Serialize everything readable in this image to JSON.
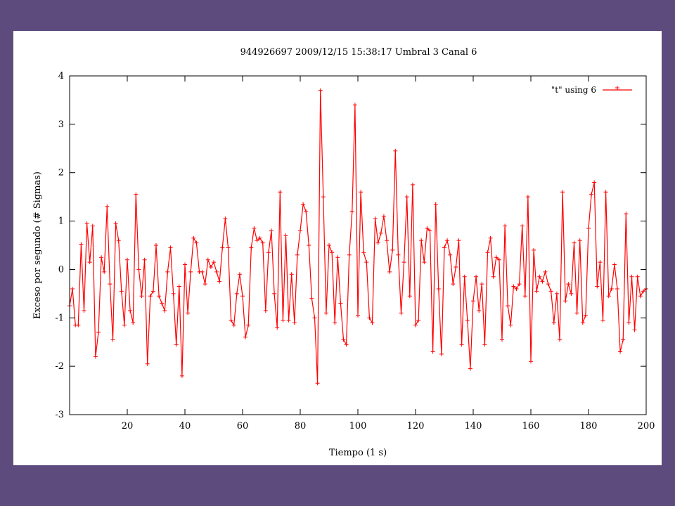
{
  "chart_data": {
    "type": "line",
    "title": "944926697 2009/12/15 15:38:17 Umbral 3 Canal 6",
    "xlabel": "Tiempo (1 s)",
    "ylabel": "Exceso por segundo (# Sigmas)",
    "xlim": [
      0,
      200
    ],
    "ylim": [
      -3,
      4
    ],
    "xticks": [
      20,
      40,
      60,
      80,
      100,
      120,
      140,
      160,
      180,
      200
    ],
    "yticks": [
      -3,
      -2,
      -1,
      0,
      1,
      2,
      3,
      4
    ],
    "grid": false,
    "legend_position": "top-right",
    "series": [
      {
        "name": "\"t\" using 6",
        "color": "#ff0000",
        "marker": "plus",
        "values": [
          -0.75,
          -0.4,
          -1.15,
          -1.15,
          0.52,
          -0.85,
          0.95,
          0.15,
          0.9,
          -1.8,
          -1.3,
          0.25,
          -0.05,
          1.3,
          -0.3,
          -1.45,
          0.95,
          0.6,
          -0.45,
          -1.15,
          0.2,
          -0.85,
          -1.1,
          1.55,
          0.0,
          -0.55,
          0.2,
          -1.95,
          -0.55,
          -0.45,
          0.5,
          -0.55,
          -0.7,
          -0.85,
          -0.05,
          0.45,
          -0.5,
          -1.55,
          -0.35,
          -2.2,
          0.1,
          -0.9,
          -0.05,
          0.65,
          0.55,
          -0.05,
          -0.05,
          -0.3,
          0.2,
          0.05,
          0.15,
          -0.05,
          -0.25,
          0.45,
          1.05,
          0.45,
          -1.05,
          -1.15,
          -0.5,
          -0.1,
          -0.55,
          -1.4,
          -1.15,
          0.45,
          0.85,
          0.6,
          0.65,
          0.55,
          -0.85,
          0.35,
          0.8,
          -0.5,
          -1.2,
          1.6,
          -1.05,
          0.7,
          -1.05,
          -0.1,
          -1.1,
          0.3,
          0.8,
          1.35,
          1.2,
          0.5,
          -0.6,
          -1.0,
          -2.35,
          3.7,
          1.5,
          -0.9,
          0.5,
          0.35,
          -1.1,
          0.25,
          -0.7,
          -1.45,
          -1.55,
          0.3,
          1.2,
          3.4,
          -0.95,
          1.6,
          0.35,
          0.15,
          -1.0,
          -1.1,
          1.05,
          0.55,
          0.75,
          1.1,
          0.6,
          -0.05,
          0.4,
          2.45,
          0.3,
          -0.9,
          0.15,
          1.5,
          -0.55,
          1.75,
          -1.15,
          -1.05,
          0.6,
          0.15,
          0.85,
          0.8,
          -1.7,
          1.35,
          -0.4,
          -1.75,
          0.45,
          0.6,
          0.3,
          -0.3,
          0.05,
          0.6,
          -1.55,
          -0.15,
          -1.05,
          -2.05,
          -0.65,
          -0.15,
          -0.85,
          -0.3,
          -1.55,
          0.35,
          0.65,
          -0.15,
          0.25,
          0.2,
          -1.45,
          0.9,
          -0.75,
          -1.15,
          -0.35,
          -0.4,
          -0.3,
          0.9,
          -0.55,
          1.5,
          -1.9,
          0.4,
          -0.45,
          -0.15,
          -0.25,
          -0.05,
          -0.3,
          -0.45,
          -1.1,
          -0.5,
          -1.45,
          1.6,
          -0.65,
          -0.3,
          -0.5,
          0.55,
          -0.9,
          0.6,
          -1.1,
          -0.95,
          0.85,
          1.55,
          1.8,
          -0.35,
          0.15,
          -1.05,
          1.6,
          -0.55,
          -0.4,
          0.1,
          -0.4,
          -1.7,
          -1.45,
          1.15,
          -1.1,
          -0.15,
          -1.25,
          -0.15,
          -0.55,
          -0.45,
          -0.4
        ]
      }
    ]
  }
}
